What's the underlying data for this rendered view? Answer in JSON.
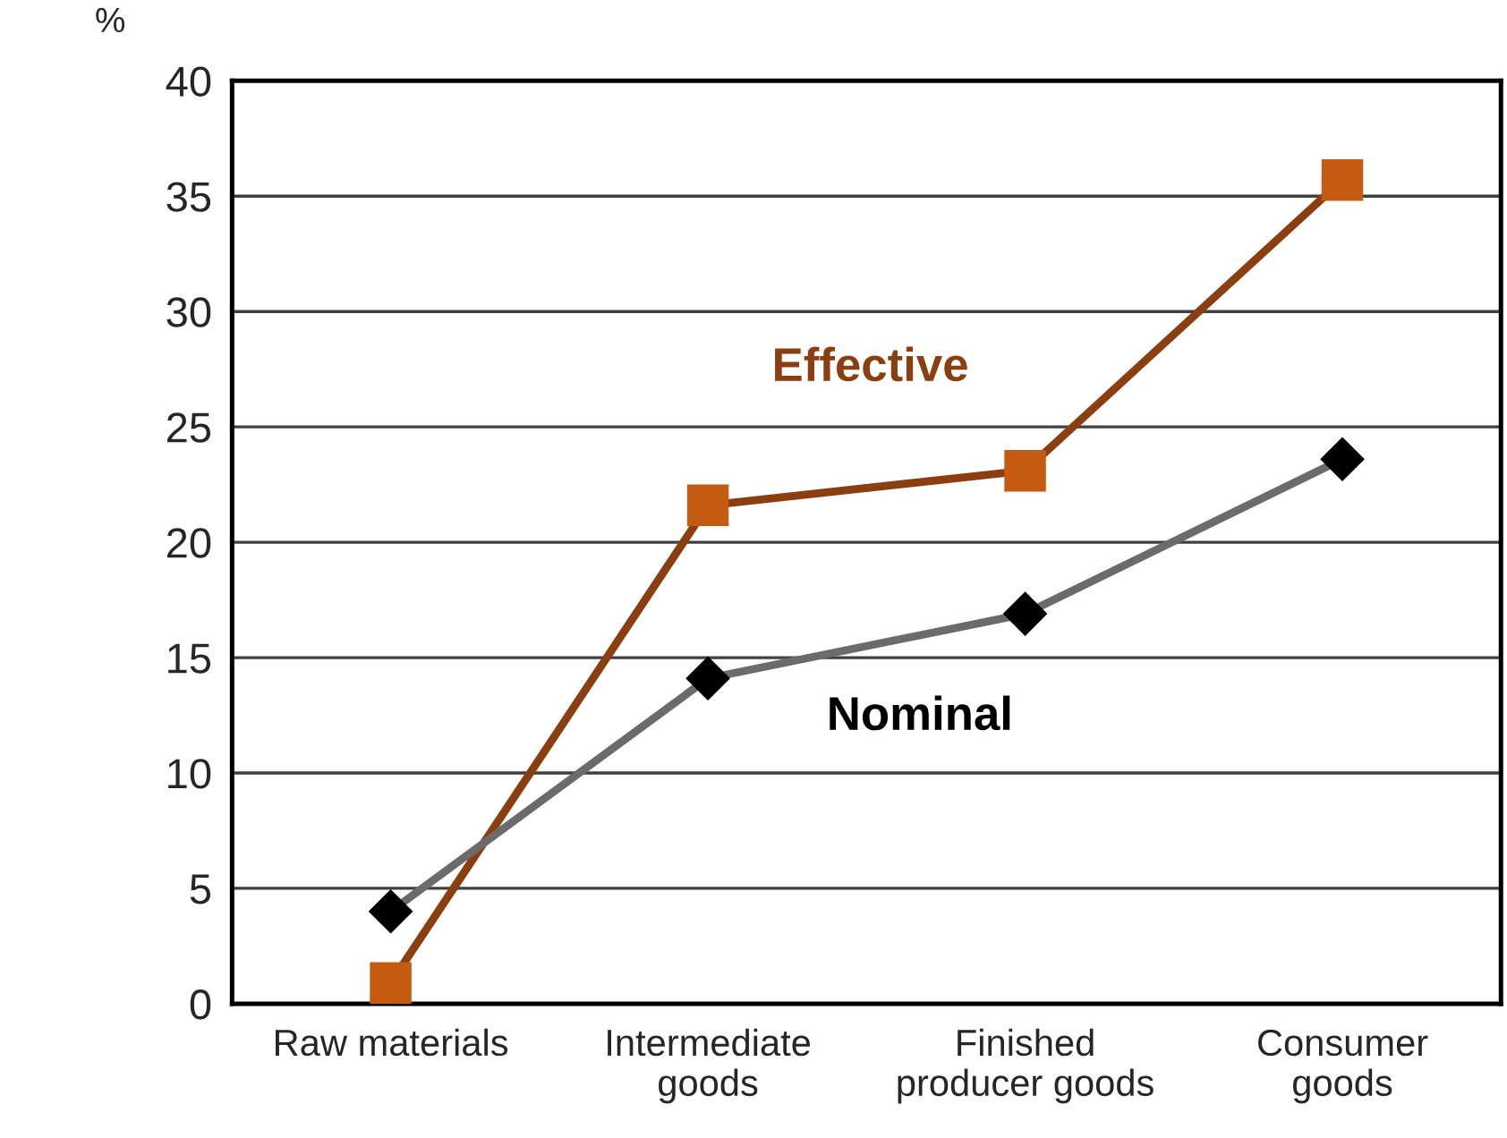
{
  "chart_data": {
    "type": "line",
    "ylabel": "%",
    "categories": [
      "Raw materials",
      "Intermediate\ngoods",
      "Finished\nproducer goods",
      "Consumer\ngoods"
    ],
    "series": [
      {
        "name": "Effective",
        "color": "#8b3e0f",
        "colors": [
          "#c55a11",
          "#c55a11",
          "#c55a11",
          "#c55a11"
        ],
        "marker": "square",
        "values": [
          0.9,
          21.6,
          23.1,
          35.7
        ]
      },
      {
        "name": "Nominal",
        "color": "#6b6b6b",
        "colors": [
          "#000000",
          "#000000",
          "#000000",
          "#000000"
        ],
        "marker": "diamond",
        "values": [
          4.0,
          14.1,
          16.9,
          23.6
        ]
      }
    ],
    "ylim": [
      0,
      40
    ],
    "yticks": [
      0,
      5,
      10,
      15,
      20,
      25,
      30,
      35,
      40
    ],
    "grid": "y",
    "legend": false,
    "line_style": "solid"
  }
}
